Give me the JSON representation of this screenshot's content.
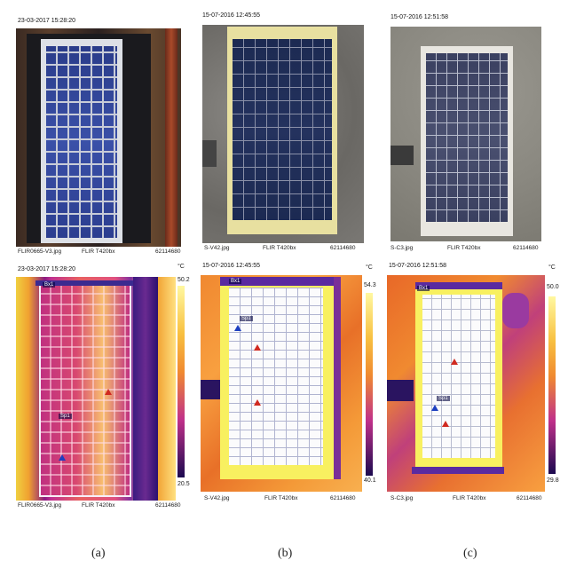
{
  "panels": [
    {
      "caption": "(a)",
      "photo_timestamp": "23-03-2017 15:28:20",
      "photo_file": "FLIR0665-V3.jpg",
      "photo_camera": "FLIR T420bx",
      "photo_serial": "62114680",
      "thermal_timestamp": "23-03-2017 15:28:20",
      "thermal_file": "FLIR0665-V3.jpg",
      "thermal_camera": "FLIR T420bx",
      "thermal_serial": "62114680",
      "scale_unit": "°C",
      "scale_max": "50.2",
      "scale_min": "20.5",
      "roi_label": "Bx1",
      "spot_label": "Sp1",
      "colors": {
        "top": "#fff8a0",
        "mid": "#f08a30",
        "low": "#c0308a",
        "bottom": "#1c0a50"
      }
    },
    {
      "caption": "(b)",
      "photo_timestamp": "15-07-2016 12:45:55",
      "photo_file": "S-V42.jpg",
      "photo_camera": "FLIR T420bx",
      "photo_serial": "62114680",
      "thermal_timestamp": "15-07-2016 12:45:55",
      "thermal_file": "S-V42.jpg",
      "thermal_camera": "FLIR T420bx",
      "thermal_serial": "62114680",
      "scale_unit": "°C",
      "scale_max": "54.3",
      "scale_min": "40.1",
      "roi_label": "Bx1",
      "spot_label": "Sp1",
      "colors": {
        "top": "#fff8a0",
        "mid": "#f08a30",
        "low": "#c0308a",
        "bottom": "#1c0a50"
      }
    },
    {
      "caption": "(c)",
      "photo_timestamp": "15-07-2016 12:51:58",
      "photo_file": "S-C3.jpg",
      "photo_camera": "FLIR T420bx",
      "photo_serial": "62114680",
      "thermal_timestamp": "15-07-2016 12:51:58",
      "thermal_file": "S-C3.jpg",
      "thermal_camera": "FLIR T420bx",
      "thermal_serial": "62114680",
      "scale_unit": "°C",
      "scale_max": "50.0",
      "scale_min": "29.8",
      "roi_label": "Bx1",
      "spot_label": "Sp1",
      "colors": {
        "top": "#fff8a0",
        "mid": "#f08a30",
        "low": "#c0308a",
        "bottom": "#1c0a50"
      }
    }
  ]
}
